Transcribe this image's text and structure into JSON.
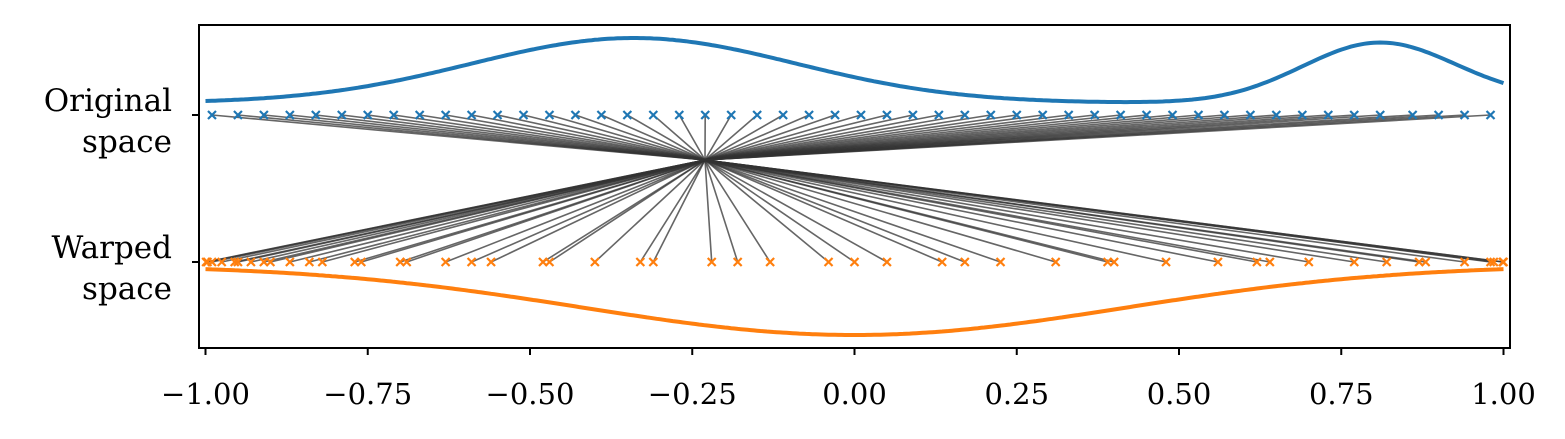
{
  "chart_data": {
    "type": "scatter",
    "title": "",
    "xlabel": "",
    "ylabel": "",
    "xlim": [
      -1.01,
      1.01
    ],
    "x_ticks": [
      "−1.00",
      "−0.75",
      "−0.50",
      "−0.25",
      "0.00",
      "0.25",
      "0.50",
      "0.75",
      "1.00"
    ],
    "y_tick_labels": [
      {
        "line1": "Original",
        "line2": "space"
      },
      {
        "line1": "Warped",
        "line2": "space"
      }
    ],
    "colors": {
      "original": "#1f77b4",
      "warped": "#ff7f0e",
      "connector": "#333333",
      "axis": "#000000"
    },
    "grid": false,
    "legend": "none",
    "original_points": [
      -0.99,
      -0.95,
      -0.91,
      -0.87,
      -0.83,
      -0.79,
      -0.75,
      -0.71,
      -0.67,
      -0.63,
      -0.59,
      -0.55,
      -0.51,
      -0.47,
      -0.43,
      -0.39,
      -0.35,
      -0.31,
      -0.27,
      -0.23,
      -0.19,
      -0.15,
      -0.11,
      -0.07,
      -0.03,
      0.01,
      0.05,
      0.09,
      0.13,
      0.17,
      0.21,
      0.25,
      0.29,
      0.33,
      0.37,
      0.41,
      0.45,
      0.49,
      0.53,
      0.57,
      0.61,
      0.65,
      0.69,
      0.73,
      0.77,
      0.81,
      0.86,
      0.9,
      0.94,
      0.98
    ],
    "warped_points": [
      1.0,
      0.999,
      0.985,
      0.98,
      0.94,
      0.88,
      0.87,
      0.82,
      0.77,
      0.7,
      0.64,
      0.62,
      0.56,
      0.48,
      0.4,
      0.39,
      0.31,
      0.225,
      0.17,
      0.135,
      0.05,
      0.0,
      -0.04,
      -0.13,
      -0.18,
      -0.22,
      -0.31,
      -0.33,
      -0.4,
      -0.47,
      -0.48,
      -0.56,
      -0.59,
      -0.63,
      -0.69,
      -0.7,
      -0.76,
      -0.77,
      -0.82,
      -0.84,
      -0.87,
      -0.9,
      -0.91,
      -0.93,
      -0.955,
      -0.95,
      -0.975,
      -0.99,
      -0.997,
      -0.999
    ],
    "original_density": {
      "baseline": 0.0,
      "components": [
        {
          "mean": -0.34,
          "sd": 0.25,
          "height": 1.0
        },
        {
          "mean": 0.81,
          "sd": 0.12,
          "height": 0.93
        },
        {
          "mean": 1.05,
          "sd": 0.08,
          "height": 0.05
        }
      ]
    },
    "warped_density": {
      "mean": 0.0,
      "sd": 0.42,
      "height": 1.0
    }
  }
}
